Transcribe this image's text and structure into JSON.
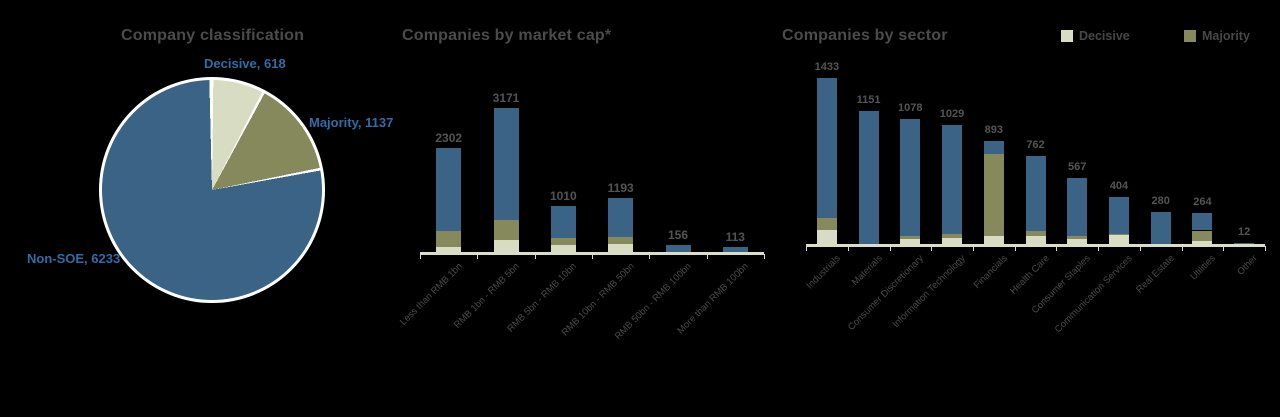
{
  "page": {
    "background": "#000000"
  },
  "colors": {
    "non_soe_blue": "#3a6385",
    "decisive_beige": "#d8dcc2",
    "majority_olive": "#86895b",
    "axis": "#dbdec6",
    "title_text": "#4b4b4b",
    "value_label_text": "#545454",
    "callout_blue": "#2f6da4"
  },
  "legend": {
    "items": [
      {
        "label": "Decisive",
        "color": "#d8dcc2"
      },
      {
        "label": "Majority",
        "color": "#86895b"
      }
    ]
  },
  "chart_data": [
    {
      "type": "pie",
      "title": "Company classification",
      "slices": [
        {
          "label": "Decisive",
          "value": 618,
          "color": "#d8dcc2",
          "callout": "Decisive, 618"
        },
        {
          "label": "Majority",
          "value": 1137,
          "color": "#86895b",
          "callout": "Majority, 1137"
        },
        {
          "label": "Non-SOE",
          "value": 6233,
          "color": "#3a6385",
          "callout": "Non-SOE, 6233"
        }
      ],
      "start_angle_deg": 0,
      "direction": "clockwise"
    },
    {
      "type": "bar",
      "title": "Companies by market cap*",
      "stacked": true,
      "categories": [
        "Less than RMB 1bn",
        "RMB 1bn - RMB 5bn",
        "RMB 5bn - RMB 10bn",
        "RMB 10bn - RMB 50bn",
        "RMB 50bn - RMB 100bn",
        "More than RMB 100bn"
      ],
      "totals": [
        2302,
        3171,
        1010,
        1193,
        156,
        113
      ],
      "series": [
        {
          "name": "Decisive",
          "color": "#d8dcc2",
          "values": [
            110,
            264,
            154,
            176,
            0,
            0
          ]
        },
        {
          "name": "Majority",
          "color": "#86895b",
          "values": [
            352,
            440,
            154,
            154,
            0,
            0
          ]
        },
        {
          "name": "Non-SOE",
          "color": "#3a6385",
          "values": [
            1840,
            2467,
            702,
            863,
            156,
            113
          ]
        }
      ],
      "ylim": [
        0,
        3400
      ],
      "grid": false,
      "legend_position": "none"
    },
    {
      "type": "bar",
      "title": "Companies by sector",
      "stacked": true,
      "categories": [
        "Industrials",
        "Materials",
        "Consumer Discretionary",
        "Information Technology",
        "Financials",
        "Health Care",
        "Consumer Staples",
        "Communication Services",
        "Real Estate",
        "Utilities",
        "Other"
      ],
      "totals": [
        1433,
        1151,
        1078,
        1029,
        893,
        762,
        567,
        404,
        280,
        264,
        12
      ],
      "series": [
        {
          "name": "Decisive",
          "color": "#d8dcc2",
          "values": [
            124,
            0,
            43,
            52,
            70,
            72,
            43,
            80,
            0,
            30,
            0
          ]
        },
        {
          "name": "Majority",
          "color": "#86895b",
          "values": [
            102,
            0,
            26,
            35,
            704,
            37,
            26,
            10,
            0,
            87,
            0
          ]
        },
        {
          "name": "Non-SOE",
          "color": "#3a6385",
          "values": [
            1207,
            1151,
            1009,
            942,
            119,
            653,
            498,
            314,
            280,
            147,
            12
          ]
        }
      ],
      "ylim": [
        0,
        1500
      ],
      "grid": false,
      "legend_position": "top-right"
    }
  ]
}
